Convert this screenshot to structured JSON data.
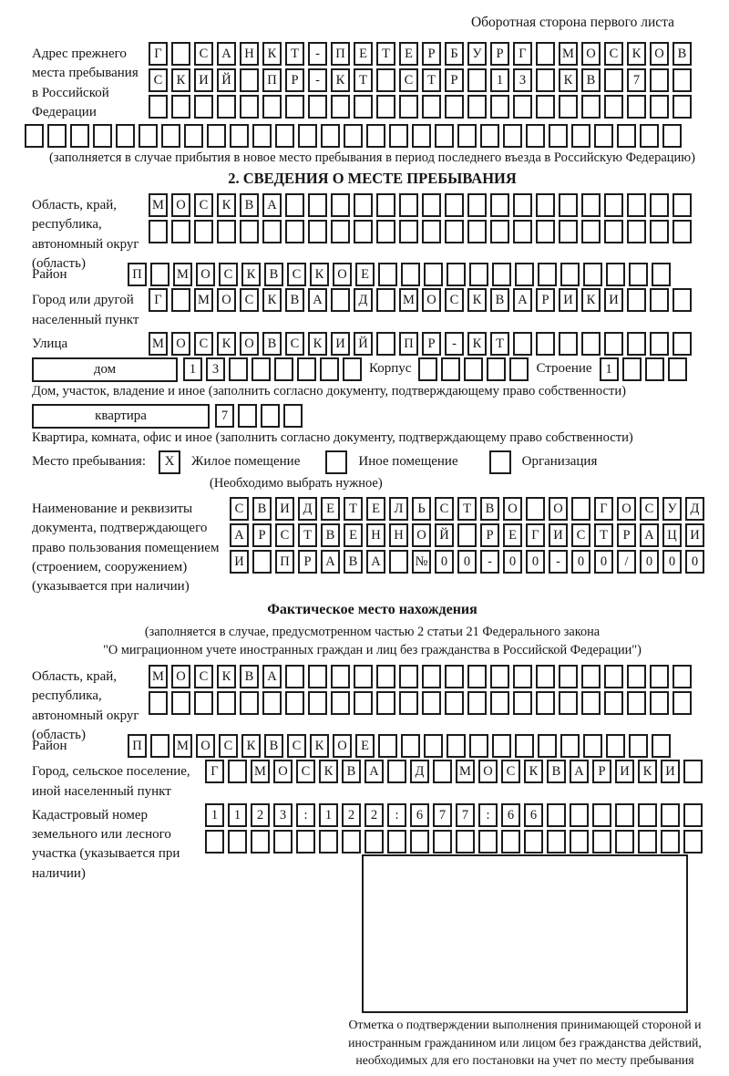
{
  "header": {
    "title": "Оборотная сторона первого листа"
  },
  "prev_address": {
    "label": "Адрес прежнего места пребывания в Российской Федерации",
    "rows": [
      [
        "Г",
        "",
        "С",
        "А",
        "Н",
        "К",
        "Т",
        "-",
        "П",
        "Е",
        "Т",
        "Е",
        "Р",
        "Б",
        "У",
        "Р",
        "Г",
        "",
        "М",
        "О",
        "С",
        "К",
        "О",
        "В"
      ],
      [
        "С",
        "К",
        "И",
        "Й",
        "",
        "П",
        "Р",
        "-",
        "К",
        "Т",
        "",
        "С",
        "Т",
        "Р",
        "",
        "1",
        "3",
        "",
        "К",
        "В",
        "",
        "7",
        "",
        ""
      ],
      [
        "",
        "",
        "",
        "",
        "",
        "",
        "",
        "",
        "",
        "",
        "",
        "",
        "",
        "",
        "",
        "",
        "",
        "",
        "",
        "",
        "",
        "",
        "",
        ""
      ]
    ],
    "overflow_row": [
      "",
      "",
      "",
      "",
      "",
      "",
      "",
      "",
      "",
      "",
      "",
      "",
      "",
      "",
      "",
      "",
      "",
      "",
      "",
      "",
      "",
      "",
      "",
      "",
      "",
      "",
      "",
      "",
      ""
    ],
    "note": "(заполняется в случае прибытия в новое место пребывания в период последнего въезда в Российскую Федерацию)"
  },
  "section2": {
    "title": "2. СВЕДЕНИЯ О МЕСТЕ ПРЕБЫВАНИЯ",
    "oblast": {
      "label": "Область, край, республика, автономный округ (область)",
      "rows": [
        [
          "М",
          "О",
          "С",
          "К",
          "В",
          "А",
          "",
          "",
          "",
          "",
          "",
          "",
          "",
          "",
          "",
          "",
          "",
          "",
          "",
          "",
          "",
          "",
          "",
          ""
        ],
        [
          "",
          "",
          "",
          "",
          "",
          "",
          "",
          "",
          "",
          "",
          "",
          "",
          "",
          "",
          "",
          "",
          "",
          "",
          "",
          "",
          "",
          "",
          "",
          ""
        ]
      ]
    },
    "raion": {
      "label": "Район",
      "row": [
        "П",
        "",
        "М",
        "О",
        "С",
        "К",
        "В",
        "С",
        "К",
        "О",
        "Е",
        "",
        "",
        "",
        "",
        "",
        "",
        "",
        "",
        "",
        "",
        "",
        "",
        ""
      ]
    },
    "gorod": {
      "label": "Город или другой населенный пункт",
      "row": [
        "Г",
        "",
        "М",
        "О",
        "С",
        "К",
        "В",
        "А",
        "",
        "Д",
        "",
        "М",
        "О",
        "С",
        "К",
        "В",
        "А",
        "Р",
        "И",
        "К",
        "И",
        "",
        "",
        ""
      ]
    },
    "ulitsa": {
      "label": "Улица",
      "row": [
        "М",
        "О",
        "С",
        "К",
        "О",
        "В",
        "С",
        "К",
        "И",
        "Й",
        "",
        "П",
        "Р",
        "-",
        "К",
        "Т",
        "",
        "",
        "",
        "",
        "",
        "",
        "",
        ""
      ]
    },
    "dom": {
      "box_label": "дом",
      "cells": [
        "1",
        "3",
        "",
        "",
        "",
        "",
        "",
        ""
      ],
      "korpus_label": "Корпус",
      "korpus_cells": [
        "",
        "",
        "",
        "",
        ""
      ],
      "stroenie_label": "Строение",
      "stroenie_cells": [
        "1",
        "",
        "",
        ""
      ],
      "caption": "Дом, участок, владение и иное (заполнить согласно документу, подтверждающему право собственности)"
    },
    "kvartira": {
      "box_label": "квартира",
      "cells": [
        "7",
        "",
        "",
        ""
      ],
      "caption": "Квартира, комната, офис и иное (заполнить согласно документу, подтверждающему право собственности)"
    },
    "stay_type": {
      "label": "Место пребывания:",
      "options": [
        {
          "label": "Жилое помещение",
          "mark": "X"
        },
        {
          "label": "Иное помещение",
          "mark": ""
        },
        {
          "label": "Организация",
          "mark": ""
        }
      ],
      "note": "(Необходимо выбрать нужное)"
    },
    "doc": {
      "label": "Наименование и реквизиты документа, подтверждающего право пользования помещением (строением, сооружением) (указывается при наличии)",
      "rows": [
        [
          "С",
          "В",
          "И",
          "Д",
          "Е",
          "Т",
          "Е",
          "Л",
          "Ь",
          "С",
          "Т",
          "В",
          "О",
          "",
          "О",
          "",
          "Г",
          "О",
          "С",
          "У",
          "Д"
        ],
        [
          "А",
          "Р",
          "С",
          "Т",
          "В",
          "Е",
          "Н",
          "Н",
          "О",
          "Й",
          "",
          "Р",
          "Е",
          "Г",
          "И",
          "С",
          "Т",
          "Р",
          "А",
          "Ц",
          "И"
        ],
        [
          "И",
          "",
          "П",
          "Р",
          "А",
          "В",
          "А",
          "",
          "№",
          "0",
          "0",
          "-",
          "0",
          "0",
          "-",
          "0",
          "0",
          "/",
          "0",
          "0",
          "0"
        ]
      ]
    }
  },
  "fact": {
    "title": "Фактическое место нахождения",
    "note_line1": "(заполняется в случае, предусмотренном частью 2 статьи 21 Федерального закона",
    "note_line2": "\"О миграционном учете иностранных граждан и лиц без гражданства в Российской Федерации\")",
    "oblast": {
      "label": "Область, край, республика, автономный округ (область)",
      "rows": [
        [
          "М",
          "О",
          "С",
          "К",
          "В",
          "А",
          "",
          "",
          "",
          "",
          "",
          "",
          "",
          "",
          "",
          "",
          "",
          "",
          "",
          "",
          "",
          "",
          "",
          ""
        ],
        [
          "",
          "",
          "",
          "",
          "",
          "",
          "",
          "",
          "",
          "",
          "",
          "",
          "",
          "",
          "",
          "",
          "",
          "",
          "",
          "",
          "",
          "",
          "",
          ""
        ]
      ]
    },
    "raion": {
      "label": "Район",
      "row": [
        "П",
        "",
        "М",
        "О",
        "С",
        "К",
        "В",
        "С",
        "К",
        "О",
        "Е",
        "",
        "",
        "",
        "",
        "",
        "",
        "",
        "",
        "",
        "",
        "",
        "",
        ""
      ]
    },
    "gorod": {
      "label": "Город, сельское поселение, иной населенный пункт",
      "row": [
        "Г",
        "",
        "М",
        "О",
        "С",
        "К",
        "В",
        "А",
        "",
        "Д",
        "",
        "М",
        "О",
        "С",
        "К",
        "В",
        "А",
        "Р",
        "И",
        "К",
        "И",
        ""
      ]
    },
    "kadastr": {
      "label": "Кадастровый номер земельного или лесного участка (указывается при наличии)",
      "rows": [
        [
          "1",
          "1",
          "2",
          "3",
          ":",
          "1",
          "2",
          "2",
          ":",
          "6",
          "7",
          "7",
          ":",
          "6",
          "6",
          "",
          "",
          "",
          "",
          "",
          "",
          ""
        ],
        [
          "",
          "",
          "",
          "",
          "",
          "",
          "",
          "",
          "",
          "",
          "",
          "",
          "",
          "",
          "",
          "",
          "",
          "",
          "",
          "",
          "",
          ""
        ]
      ]
    },
    "stamp_caption": "Отметка о подтверждении выполнения принимающей стороной и иностранным гражданином или лицом без гражданства действий, необходимых для его постановки на учет по месту пребывания"
  }
}
